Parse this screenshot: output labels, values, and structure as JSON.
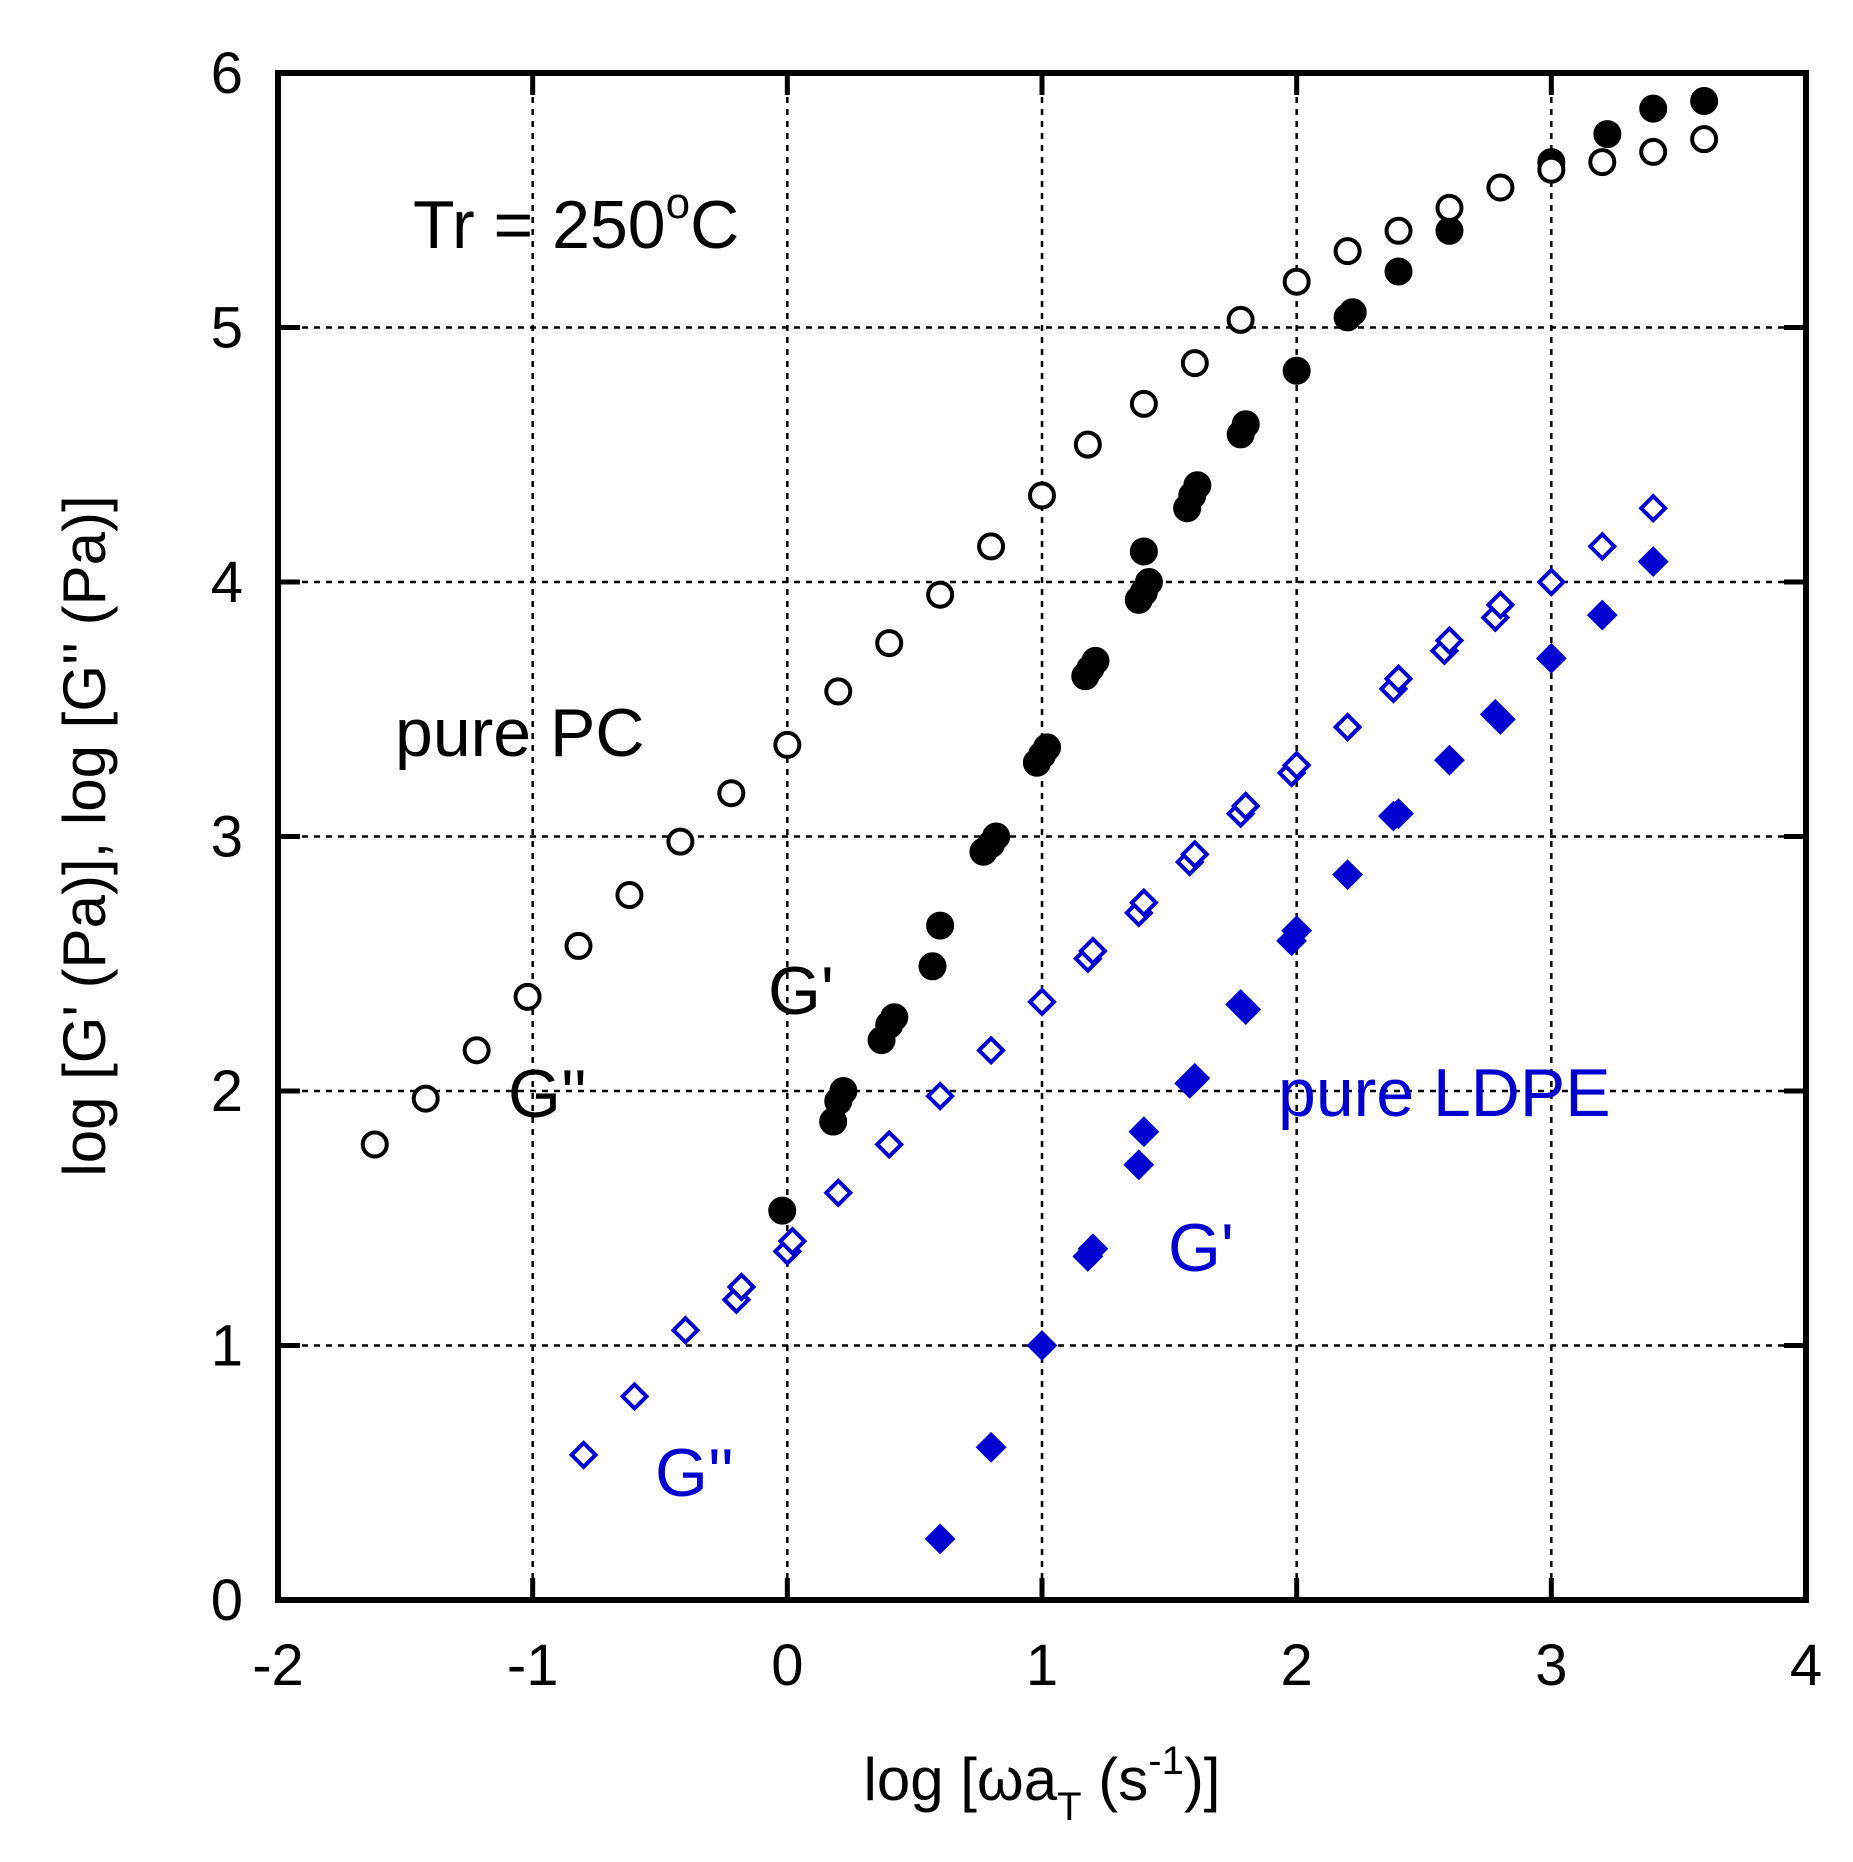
{
  "chart_data": {
    "type": "scatter",
    "title": "",
    "xlabel": {
      "prefix": "log [",
      "omega": "ω",
      "a": "a",
      "sub": "T",
      "mid": " (s",
      "sup": "-1",
      "suffix": ")]"
    },
    "ylabel": "log [G' (Pa)], log [G'' (Pa)]",
    "xlim": [
      -2,
      4
    ],
    "ylim": [
      0,
      6
    ],
    "xticks": [
      -2,
      -1,
      0,
      1,
      2,
      3,
      4
    ],
    "yticks": [
      0,
      1,
      2,
      3,
      4,
      5,
      6
    ],
    "grid": true,
    "colors": {
      "pc": "#000000",
      "ldpe": "#0000d0",
      "grid": "#000000"
    },
    "annotations": {
      "temperature": {
        "prefix": "Tr = 250",
        "sup": "o",
        "suffix": "C"
      },
      "pc_label": "pure PC",
      "pc_gp": "G'",
      "pc_gpp": "G''",
      "ldpe_label": "pure LDPE",
      "ldpe_gp": "G'",
      "ldpe_gpp": "G''"
    },
    "series": [
      {
        "name": "pure PC G'",
        "marker": "filled-circle",
        "color": "#000000",
        "x": [
          -0.02,
          0.18,
          0.2,
          0.22,
          0.37,
          0.4,
          0.42,
          0.57,
          0.6,
          0.77,
          0.8,
          0.82,
          0.98,
          1.0,
          1.02,
          1.17,
          1.19,
          1.21,
          1.38,
          1.4,
          1.42,
          1.4,
          1.57,
          1.59,
          1.61,
          1.78,
          1.8,
          2.0,
          2.2,
          2.22,
          2.4,
          2.6,
          3.0,
          3.22,
          3.4,
          3.6
        ],
        "y": [
          1.53,
          1.88,
          1.96,
          2.0,
          2.2,
          2.26,
          2.29,
          2.49,
          2.65,
          2.94,
          2.97,
          3.0,
          3.29,
          3.32,
          3.35,
          3.63,
          3.66,
          3.69,
          3.93,
          3.96,
          4.0,
          4.12,
          4.29,
          4.34,
          4.38,
          4.58,
          4.62,
          4.83,
          5.04,
          5.06,
          5.22,
          5.38,
          5.65,
          5.76,
          5.86,
          5.89
        ]
      },
      {
        "name": "pure PC G''",
        "marker": "open-circle",
        "color": "#000000",
        "x": [
          -1.62,
          -1.42,
          -1.22,
          -1.02,
          -0.82,
          -0.62,
          -0.42,
          -0.22,
          0.0,
          0.2,
          0.4,
          0.6,
          0.8,
          1.0,
          1.18,
          1.4,
          1.6,
          1.78,
          2.0,
          2.2,
          2.4,
          2.6,
          2.8,
          3.0,
          3.2,
          3.4,
          3.6
        ],
        "y": [
          1.79,
          1.97,
          2.16,
          2.37,
          2.57,
          2.77,
          2.98,
          3.17,
          3.36,
          3.57,
          3.76,
          3.95,
          4.14,
          4.34,
          4.54,
          4.7,
          4.86,
          5.03,
          5.18,
          5.3,
          5.38,
          5.47,
          5.55,
          5.62,
          5.65,
          5.69,
          5.74
        ]
      },
      {
        "name": "pure LDPE G'",
        "marker": "filled-diamond",
        "color": "#0000d0",
        "x": [
          0.6,
          0.8,
          1.0,
          1.18,
          1.2,
          1.38,
          1.4,
          1.58,
          1.6,
          1.78,
          1.8,
          1.98,
          2.0,
          2.2,
          2.38,
          2.4,
          2.6,
          2.78,
          2.8,
          3.0,
          3.2,
          3.4
        ],
        "y": [
          0.24,
          0.6,
          1.0,
          1.35,
          1.38,
          1.71,
          1.84,
          2.03,
          2.05,
          2.34,
          2.32,
          2.59,
          2.63,
          2.85,
          3.08,
          3.09,
          3.3,
          3.48,
          3.46,
          3.7,
          3.87,
          4.08
        ]
      },
      {
        "name": "pure LDPE G''",
        "marker": "open-diamond",
        "color": "#0000d0",
        "x": [
          -0.8,
          -0.6,
          -0.4,
          -0.2,
          -0.18,
          0.0,
          0.02,
          0.2,
          0.4,
          0.6,
          0.8,
          1.0,
          1.18,
          1.2,
          1.38,
          1.4,
          1.58,
          1.6,
          1.78,
          1.8,
          1.98,
          2.0,
          2.2,
          2.38,
          2.4,
          2.58,
          2.6,
          2.78,
          2.8,
          3.0,
          3.2,
          3.4
        ],
        "y": [
          0.57,
          0.8,
          1.06,
          1.18,
          1.23,
          1.37,
          1.41,
          1.6,
          1.79,
          1.98,
          2.16,
          2.35,
          2.52,
          2.55,
          2.7,
          2.74,
          2.9,
          2.93,
          3.09,
          3.12,
          3.25,
          3.28,
          3.43,
          3.58,
          3.62,
          3.73,
          3.77,
          3.86,
          3.91,
          4.0,
          4.14,
          4.29
        ]
      }
    ]
  }
}
